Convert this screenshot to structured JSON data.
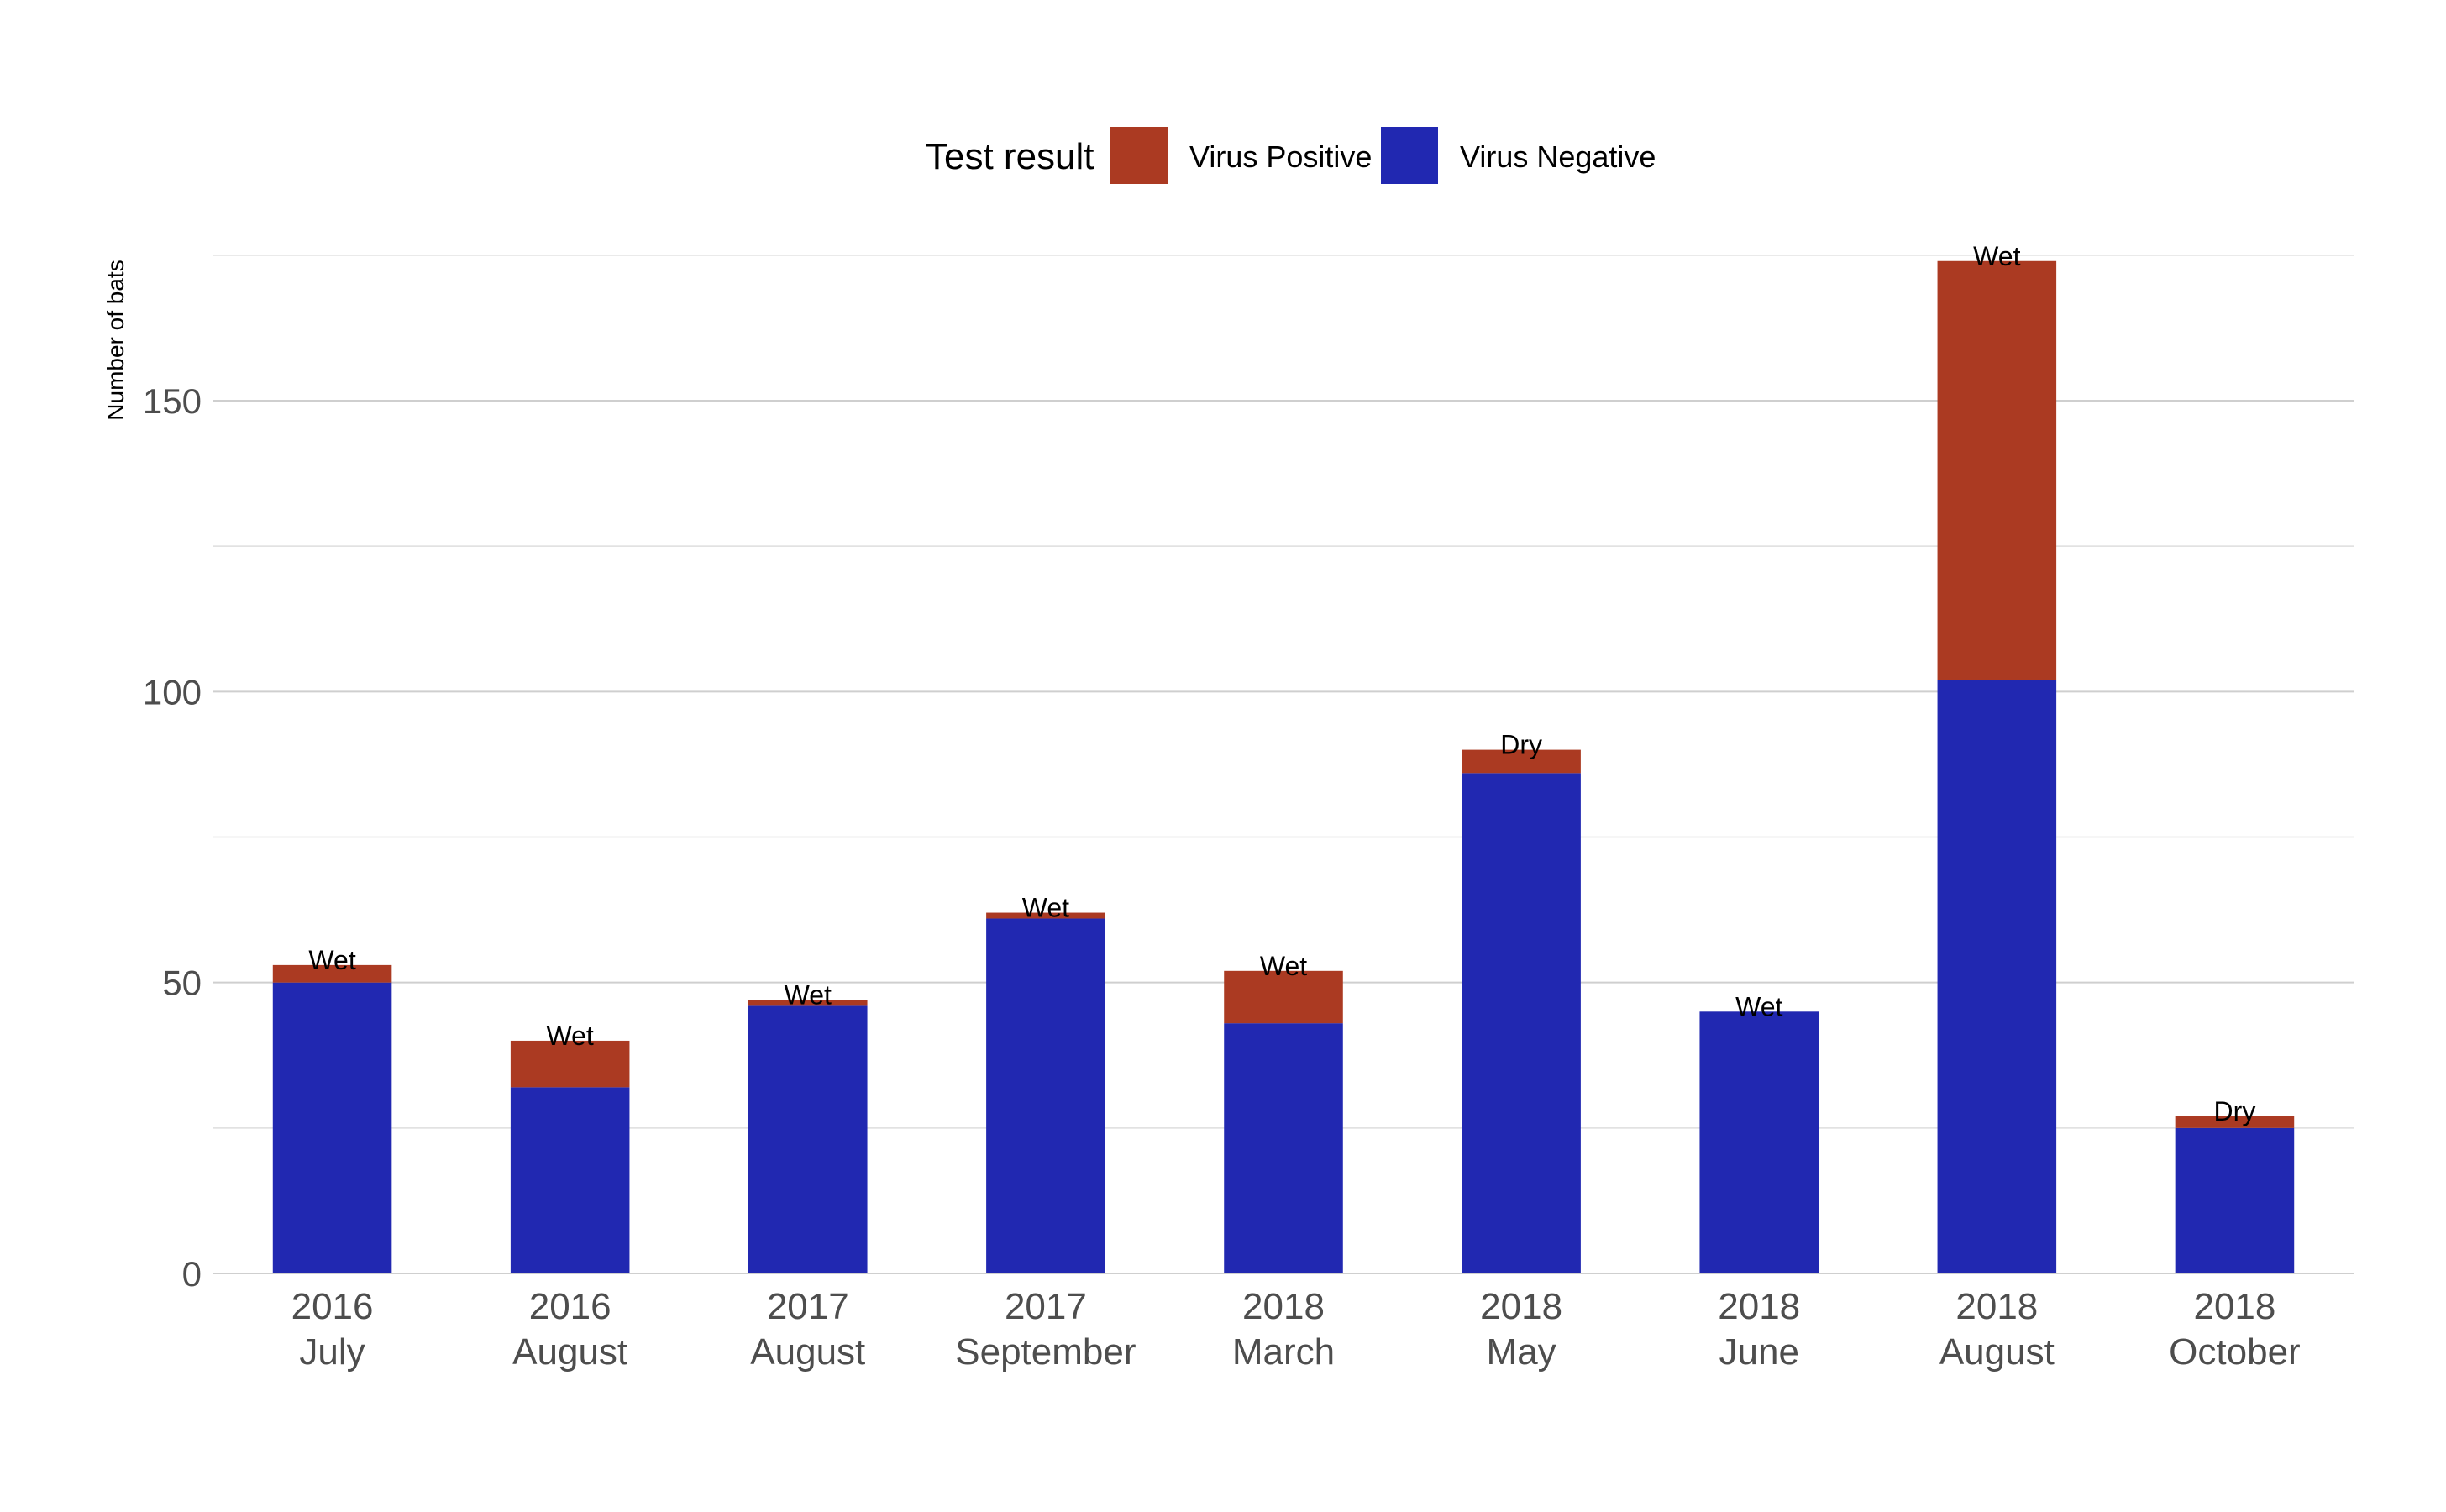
{
  "chart_data": {
    "type": "bar",
    "stacked": true,
    "legend_title": "Test result",
    "legend_position": "top",
    "ylabel": "Number of bats",
    "ylim": [
      0,
      175
    ],
    "yticks": [
      0,
      50,
      100,
      150
    ],
    "grid": true,
    "categories": [
      [
        "2016",
        "July"
      ],
      [
        "2016",
        "August"
      ],
      [
        "2017",
        "August"
      ],
      [
        "2017",
        "September"
      ],
      [
        "2018",
        "March"
      ],
      [
        "2018",
        "May"
      ],
      [
        "2018",
        "June"
      ],
      [
        "2018",
        "August"
      ],
      [
        "2018",
        "October"
      ]
    ],
    "series": [
      {
        "name": "Virus Positive",
        "color": "#ab3a22",
        "values": [
          3,
          8,
          1,
          1,
          9,
          4,
          0,
          72,
          2
        ]
      },
      {
        "name": "Virus Negative",
        "color": "#2128b1",
        "values": [
          50,
          32,
          46,
          61,
          43,
          86,
          45,
          102,
          25
        ]
      }
    ],
    "bar_labels": [
      "Wet",
      "Wet",
      "Wet",
      "Wet",
      "Wet",
      "Dry",
      "Wet",
      "Wet",
      "Dry"
    ]
  }
}
